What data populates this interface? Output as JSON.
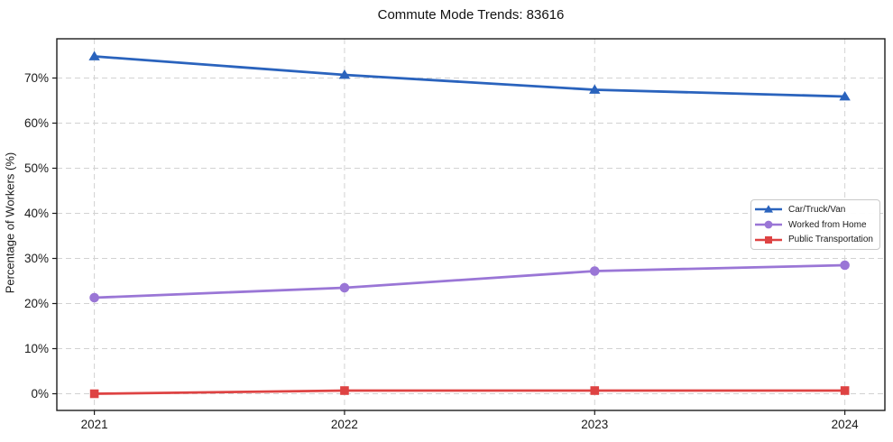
{
  "chart_data": {
    "type": "line",
    "title": "Commute Mode Trends: 83616",
    "xlabel": "",
    "ylabel": "Percentage of Workers (%)",
    "x": [
      2021,
      2022,
      2023,
      2024
    ],
    "x_tick_labels": [
      "2021",
      "2022",
      "2023",
      "2024"
    ],
    "yticks": [
      0,
      10,
      20,
      30,
      40,
      50,
      60,
      70
    ],
    "ytick_suffix": "%",
    "ylim": [
      -3.7,
      78.7
    ],
    "xlim": [
      2020.85,
      2024.16
    ],
    "grid": true,
    "grid_style": "dashed",
    "legend_position": "center-right",
    "series": [
      {
        "name": "Car/Truck/Van",
        "color": "#2a63bd",
        "marker": "triangle",
        "values": [
          74.8,
          70.7,
          67.4,
          65.9
        ]
      },
      {
        "name": "Worked from Home",
        "color": "#9a76d6",
        "marker": "circle",
        "values": [
          21.3,
          23.5,
          27.2,
          28.5
        ]
      },
      {
        "name": "Public Transportation",
        "color": "#de4343",
        "marker": "square",
        "values": [
          0.0,
          0.7,
          0.7,
          0.7
        ]
      }
    ],
    "colors": {
      "grid": "#d2d2d2",
      "frame": "#1c1c1c",
      "text": "#1a1a1a"
    }
  }
}
